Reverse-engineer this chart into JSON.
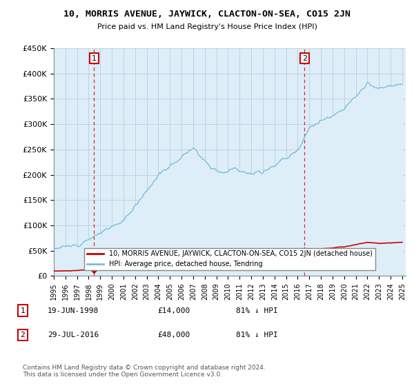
{
  "title": "10, MORRIS AVENUE, JAYWICK, CLACTON-ON-SEA, CO15 2JN",
  "subtitle": "Price paid vs. HM Land Registry's House Price Index (HPI)",
  "ylim": [
    0,
    450000
  ],
  "yticks": [
    0,
    50000,
    100000,
    150000,
    200000,
    250000,
    300000,
    350000,
    400000,
    450000
  ],
  "ytick_labels": [
    "£0",
    "£50K",
    "£100K",
    "£150K",
    "£200K",
    "£250K",
    "£300K",
    "£350K",
    "£400K",
    "£450K"
  ],
  "sale1_date": 1998.47,
  "sale1_price": 14000,
  "sale1_label": "1",
  "sale2_date": 2016.58,
  "sale2_price": 48000,
  "sale2_label": "2",
  "hpi_color": "#7abcde",
  "hpi_fill_color": "#ddeef8",
  "sale_color": "#cc0000",
  "dashed_color": "#cc0000",
  "legend_sale_label": "10, MORRIS AVENUE, JAYWICK, CLACTON-ON-SEA, CO15 2JN (detached house)",
  "legend_hpi_label": "HPI: Average price, detached house, Tendring",
  "note1_label": "1",
  "note1_date": "19-JUN-1998",
  "note1_price": "£14,000",
  "note1_hpi": "81% ↓ HPI",
  "note2_label": "2",
  "note2_date": "29-JUL-2016",
  "note2_price": "£48,000",
  "note2_hpi": "81% ↓ HPI",
  "footer": "Contains HM Land Registry data © Crown copyright and database right 2024.\nThis data is licensed under the Open Government Licence v3.0.",
  "background_color": "#ffffff",
  "plot_bg_color": "#ddeef8",
  "grid_color": "#b0c8d8"
}
